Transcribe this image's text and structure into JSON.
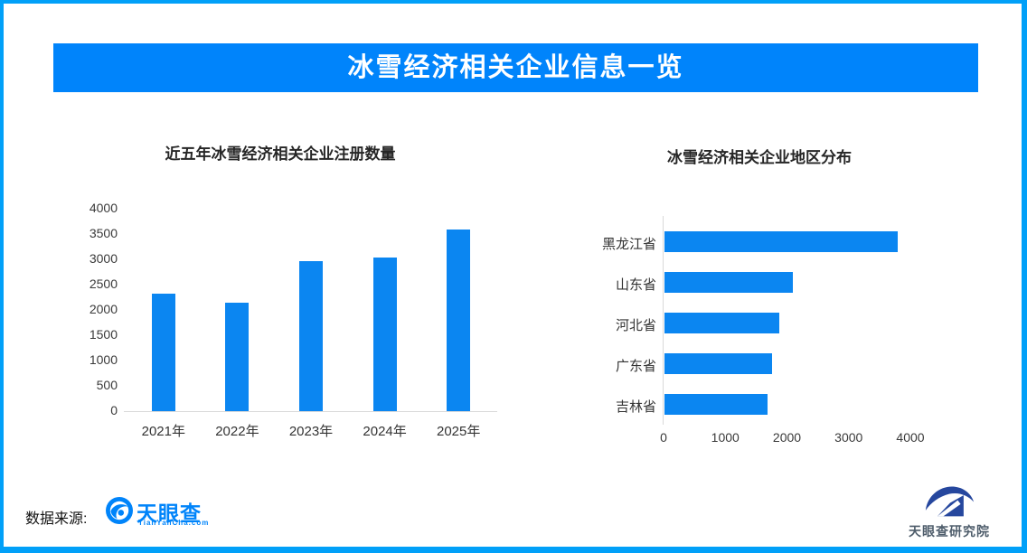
{
  "banner": {
    "title": "冰雪经济相关企业信息一览"
  },
  "chart_data": [
    {
      "type": "bar",
      "orientation": "vertical",
      "title": "近五年冰雪经济相关企业注册数量",
      "categories": [
        "2021年",
        "2022年",
        "2023年",
        "2024年",
        "2025年"
      ],
      "values": [
        2320,
        2140,
        2960,
        3030,
        3590
      ],
      "xlabel": "",
      "ylabel": "",
      "ylim": [
        0,
        4000
      ],
      "yticks": [
        0,
        500,
        1000,
        1500,
        2000,
        2500,
        3000,
        3500,
        4000
      ],
      "grid": false,
      "legend": false,
      "bar_color": "#0b86f1"
    },
    {
      "type": "bar",
      "orientation": "horizontal",
      "title": "冰雪经济相关企业地区分布",
      "categories": [
        "黑龙江省",
        "山东省",
        "河北省",
        "广东省",
        "吉林省"
      ],
      "values": [
        3780,
        2080,
        1860,
        1750,
        1670
      ],
      "xlabel": "",
      "ylabel": "",
      "xlim": [
        0,
        4000
      ],
      "xticks": [
        0,
        1000,
        2000,
        3000,
        4000
      ],
      "grid": false,
      "legend": false,
      "bar_color": "#0b86f1"
    }
  ],
  "footer": {
    "source_label": "数据来源:",
    "tianyancha": {
      "name": "天眼查",
      "subtext": "TianYanCha.com"
    },
    "institute": {
      "name": "天眼查研究院"
    }
  },
  "colors": {
    "frame_border": "#01a0f8",
    "banner_bg": "#0084fb",
    "bar": "#0b86f1",
    "axis_line": "#d9d9d9",
    "axis_text": "#3a3a3a",
    "title_text": "#262626",
    "tianyancha_blue": "#0084fa",
    "institute_navy": "#26479e",
    "institute_text": "#4e5d6b"
  }
}
